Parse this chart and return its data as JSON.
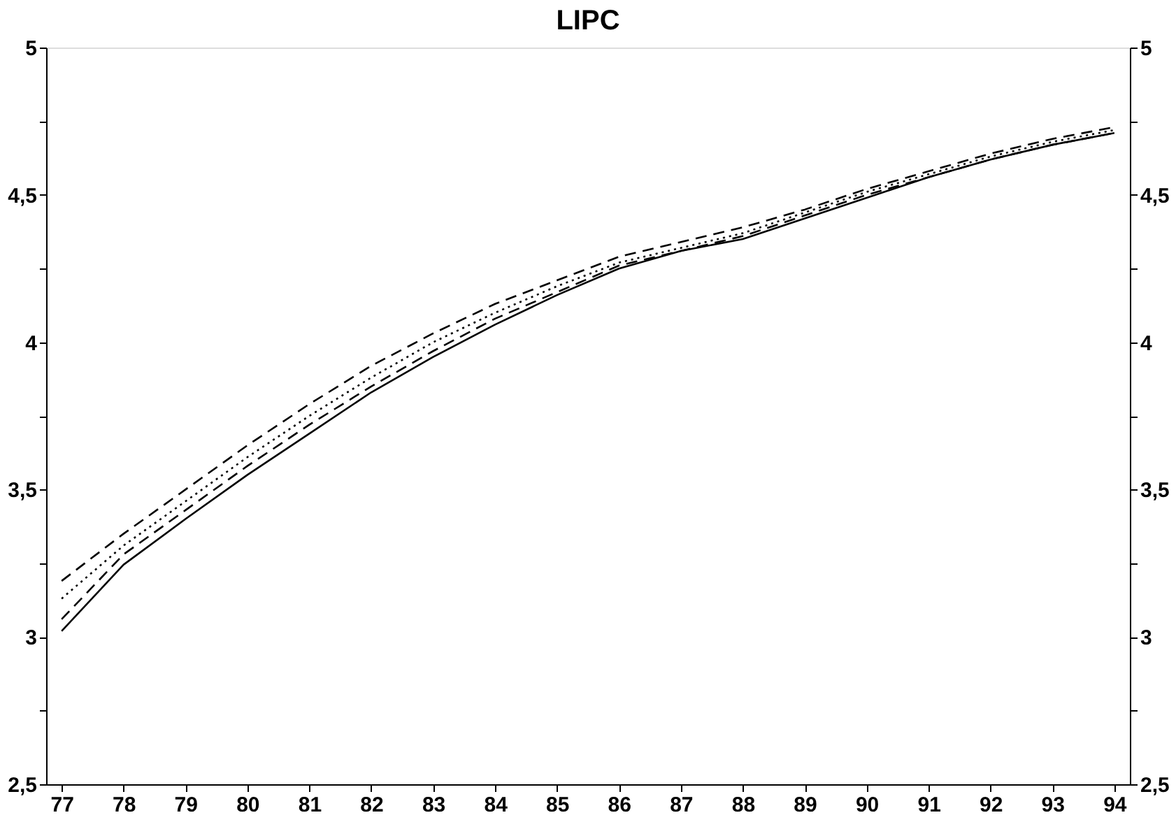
{
  "chart_data": {
    "type": "line",
    "title": "LIPC",
    "categories": [
      "77",
      "78",
      "79",
      "80",
      "81",
      "82",
      "83",
      "84",
      "85",
      "86",
      "87",
      "88",
      "89",
      "90",
      "91",
      "92",
      "93",
      "94"
    ],
    "series": [
      {
        "color": "#000000",
        "line_style": "solid",
        "values": [
          3.02,
          3.245,
          3.4,
          3.55,
          3.69,
          3.83,
          3.95,
          4.06,
          4.16,
          4.25,
          4.31,
          4.35,
          4.42,
          4.49,
          4.56,
          4.62,
          4.67,
          4.71
        ]
      },
      {
        "color": "#000000",
        "line_style": "dashed",
        "values": [
          3.06,
          3.28,
          3.43,
          3.58,
          3.72,
          3.85,
          3.97,
          4.08,
          4.17,
          4.26,
          4.31,
          4.36,
          4.43,
          4.5,
          4.56,
          4.62,
          4.67,
          4.71
        ]
      },
      {
        "color": "#000000",
        "line_style": "dotted",
        "values": [
          3.13,
          3.31,
          3.46,
          3.61,
          3.75,
          3.88,
          4.0,
          4.1,
          4.19,
          4.27,
          4.32,
          4.37,
          4.44,
          4.51,
          4.57,
          4.63,
          4.68,
          4.72
        ]
      },
      {
        "color": "#000000",
        "line_style": "dashed",
        "values": [
          3.19,
          3.35,
          3.5,
          3.65,
          3.79,
          3.92,
          4.03,
          4.13,
          4.21,
          4.29,
          4.34,
          4.39,
          4.45,
          4.52,
          4.58,
          4.64,
          4.69,
          4.73
        ]
      }
    ],
    "ylim": [
      2.5,
      5
    ],
    "yticks": [
      {
        "value": 2.5,
        "label": "2,5"
      },
      {
        "value": 2.75,
        "label": null
      },
      3,
      {
        "value": 3.25,
        "label": null
      },
      {
        "value": 3.5,
        "label": "3,5"
      },
      {
        "value": 3.75,
        "label": null
      },
      4,
      {
        "value": 4.25,
        "label": null
      },
      {
        "value": 4.5,
        "label": "4,5"
      },
      {
        "value": 4.75,
        "label": null
      },
      5
    ],
    "y2lim": [
      2.5,
      5
    ],
    "y2ticks": [
      {
        "value": 2.5,
        "label": "2,5"
      },
      {
        "value": 2.75,
        "label": null
      },
      3,
      {
        "value": 3.25,
        "label": null
      },
      {
        "value": 3.5,
        "label": "3,5"
      },
      {
        "value": 3.75,
        "label": null
      },
      4,
      {
        "value": 4.25,
        "label": null
      },
      {
        "value": 4.5,
        "label": "4,5"
      },
      {
        "value": 4.75,
        "label": null
      },
      5
    ],
    "grid": false,
    "marker": "none"
  }
}
